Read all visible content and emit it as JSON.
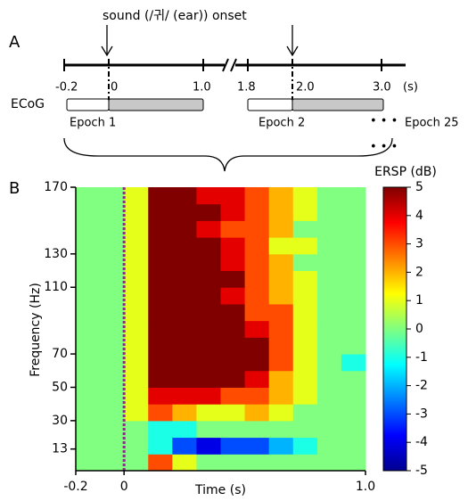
{
  "panel_a": {
    "label": "A",
    "onset_note": "sound (/귀/ (ear)) onset",
    "timeline": [
      "-0.2",
      "0",
      "1.0",
      "1.8",
      "2.0",
      "3.0",
      "(s)"
    ],
    "ecog": "ECoG",
    "epoch_1": "Epoch 1",
    "epoch_2": "Epoch 2",
    "dots": "• • •",
    "epoch_25": "Epoch 25",
    "dots_below": "• • •"
  },
  "panel_b": {
    "label": "B"
  },
  "chart_data": {
    "type": "heatmap",
    "xlabel": "Time (s)",
    "ylabel": "Frequency (Hz)",
    "xlim": [
      -0.2,
      1.0
    ],
    "ylim": [
      0,
      170
    ],
    "xticks": [
      -0.2,
      0,
      {
        "value": 1.0,
        "label": "1.0"
      }
    ],
    "yticks": [
      13,
      30,
      50,
      70,
      110,
      130,
      170
    ],
    "x_bins": [
      -0.2,
      -0.1,
      0,
      0.1,
      0.2,
      0.3,
      0.4,
      0.5,
      0.6,
      0.7,
      0.8,
      0.9,
      1.0
    ],
    "y_bins": [
      0,
      10,
      20,
      30,
      40,
      50,
      60,
      70,
      80,
      90,
      100,
      110,
      120,
      130,
      140,
      150,
      160,
      170
    ],
    "z": [
      [
        0,
        0,
        0,
        3,
        1,
        0,
        0,
        0,
        0,
        0,
        0,
        0
      ],
      [
        0,
        0,
        0,
        -1,
        -3,
        -4,
        -3,
        -3,
        -2,
        -1,
        0,
        0
      ],
      [
        0,
        0,
        0,
        -1,
        -1,
        0,
        0,
        0,
        0,
        0,
        0,
        0
      ],
      [
        0,
        0,
        1,
        3,
        2,
        1,
        1,
        2,
        1,
        0,
        0,
        0
      ],
      [
        0,
        0,
        1,
        4,
        4,
        4,
        3,
        3,
        2,
        1,
        0,
        0
      ],
      [
        0,
        0,
        1,
        5,
        5,
        5,
        5,
        4,
        2,
        1,
        0,
        0
      ],
      [
        0,
        0,
        1,
        5,
        5,
        5,
        5,
        5,
        3,
        1,
        0,
        -1
      ],
      [
        0,
        0,
        1,
        5,
        5,
        5,
        5,
        5,
        3,
        1,
        0,
        0
      ],
      [
        0,
        0,
        1,
        5,
        5,
        5,
        5,
        4,
        3,
        1,
        0,
        0
      ],
      [
        0,
        0,
        1,
        5,
        5,
        5,
        5,
        3,
        3,
        1,
        0,
        0
      ],
      [
        0,
        0,
        1,
        5,
        5,
        5,
        4,
        3,
        2,
        1,
        0,
        0
      ],
      [
        0,
        0,
        1,
        5,
        5,
        5,
        5,
        3,
        2,
        1,
        0,
        0
      ],
      [
        0,
        0,
        1,
        5,
        5,
        5,
        4,
        3,
        2,
        0,
        0,
        0
      ],
      [
        0,
        0,
        1,
        5,
        5,
        5,
        4,
        3,
        1,
        1,
        0,
        0
      ],
      [
        0,
        0,
        1,
        5,
        5,
        4,
        3,
        3,
        2,
        0,
        0,
        0
      ],
      [
        0,
        0,
        1,
        5,
        5,
        5,
        4,
        3,
        2,
        1,
        0,
        0
      ],
      [
        0,
        0,
        1,
        5,
        5,
        4,
        4,
        3,
        2,
        1,
        0,
        0
      ]
    ],
    "colorbar": {
      "label": "ERSP (dB)",
      "lim": [
        -5,
        5
      ],
      "ticks": [
        5,
        4,
        3,
        2,
        1,
        0,
        -1,
        -2,
        -3,
        -4,
        -5
      ]
    }
  }
}
